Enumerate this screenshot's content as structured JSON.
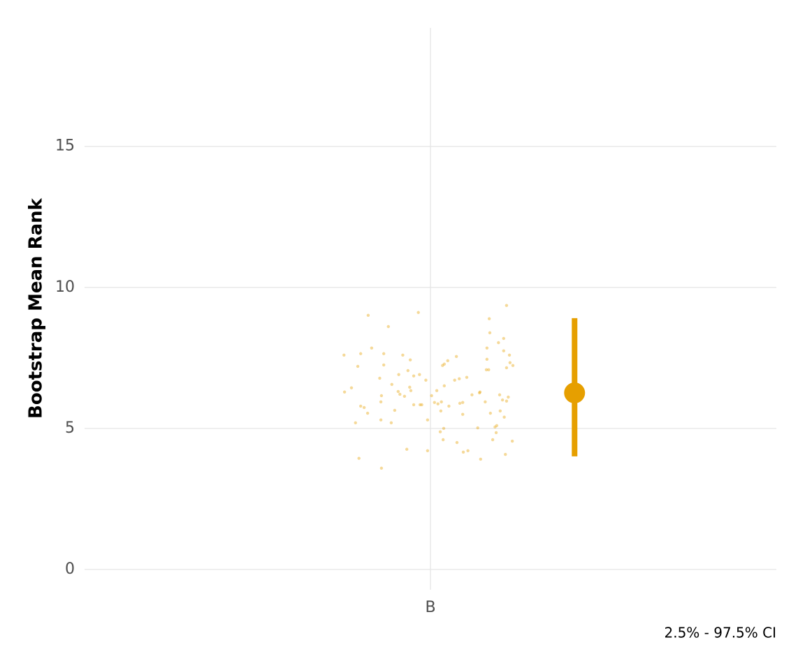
{
  "chart_data": {
    "type": "scatter",
    "ylabel": "Bootstrap Mean Rank",
    "caption": "2.5% - 97.5% CI",
    "categories": [
      "B"
    ],
    "xlim": [
      0.4,
      1.6
    ],
    "ylim": [
      -0.72,
      19.2
    ],
    "yticks": [
      0,
      5,
      10,
      15
    ],
    "grid": true,
    "series": [
      {
        "color": "#E69F00",
        "x": [
          0.85,
          0.851,
          0.863,
          0.87,
          0.874,
          0.876,
          0.879,
          0.879,
          0.885,
          0.891,
          0.892,
          0.898,
          0.912,
          0.914,
          0.914,
          0.915,
          0.915,
          0.919,
          0.919,
          0.927,
          0.932,
          0.933,
          0.938,
          0.944,
          0.945,
          0.947,
          0.952,
          0.955,
          0.959,
          0.961,
          0.964,
          0.965,
          0.966,
          0.971,
          0.971,
          0.979,
          0.981,
          0.982,
          0.985,
          0.992,
          0.995,
          0.995,
          1.002,
          1.007,
          1.011,
          1.013,
          1.017,
          1.018,
          1.019,
          1.021,
          1.022,
          1.023,
          1.024,
          1.024,
          1.03,
          1.032,
          1.042,
          1.045,
          1.046,
          1.05,
          1.051,
          1.056,
          1.056,
          1.057,
          1.063,
          1.065,
          1.072,
          1.082,
          1.085,
          1.086,
          1.087,
          1.095,
          1.097,
          1.098,
          1.098,
          1.101,
          1.102,
          1.103,
          1.104,
          1.108,
          1.112,
          1.114,
          1.115,
          1.118,
          1.12,
          1.121,
          1.125,
          1.127,
          1.127,
          1.128,
          1.13,
          1.132,
          1.132,
          1.132,
          1.135,
          1.137,
          1.138,
          1.142,
          1.143
        ],
        "values": [
          7.6,
          6.29,
          6.44,
          5.2,
          7.2,
          3.94,
          7.65,
          5.79,
          5.74,
          5.54,
          9.01,
          7.85,
          6.78,
          5.94,
          5.3,
          6.16,
          3.59,
          7.65,
          7.25,
          8.61,
          5.2,
          6.56,
          5.64,
          6.31,
          6.91,
          6.21,
          7.6,
          6.14,
          4.26,
          7.05,
          6.46,
          7.43,
          6.34,
          5.84,
          6.86,
          9.11,
          6.91,
          5.84,
          5.84,
          6.71,
          5.3,
          4.21,
          6.16,
          5.92,
          6.34,
          5.87,
          4.88,
          5.62,
          5.94,
          7.23,
          4.6,
          5.0,
          6.51,
          7.28,
          7.4,
          5.79,
          6.71,
          7.55,
          4.5,
          6.76,
          5.89,
          5.92,
          5.5,
          4.16,
          6.81,
          4.21,
          6.19,
          5.02,
          6.26,
          6.29,
          3.91,
          5.94,
          7.08,
          7.85,
          7.45,
          7.08,
          8.89,
          8.39,
          5.54,
          4.6,
          5.05,
          4.85,
          5.1,
          8.04,
          6.19,
          5.62,
          6.01,
          8.19,
          7.75,
          5.4,
          4.08,
          9.36,
          7.15,
          5.97,
          6.11,
          7.6,
          7.33,
          4.55,
          7.23
        ]
      }
    ],
    "interval": {
      "color": "#E69F00",
      "x": [
        1.25
      ],
      "values": [
        6.26
      ],
      "lower": [
        4.01
      ],
      "upper": [
        8.91
      ]
    }
  }
}
